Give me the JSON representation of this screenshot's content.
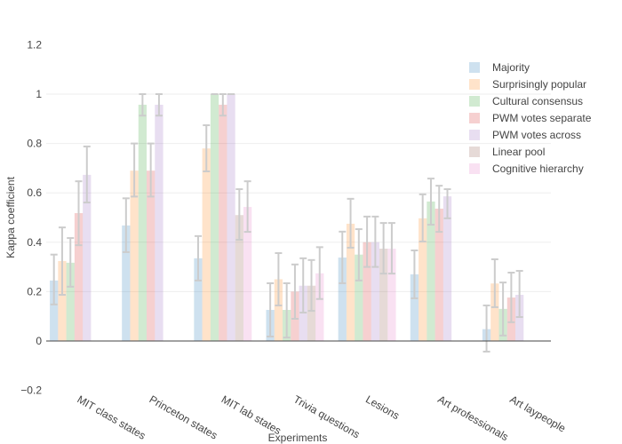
{
  "chart_data": {
    "type": "bar",
    "title": "",
    "xlabel": "Experiments",
    "ylabel": "Kappa coefficient",
    "ylim": [
      -0.2,
      1.2
    ],
    "yticks": [
      "1.2",
      "1",
      "0.8",
      "0.6",
      "0.4",
      "0.2",
      "0",
      "−0.2"
    ],
    "ytick_values": [
      1.2,
      1,
      0.8,
      0.6,
      0.4,
      0.2,
      0,
      -0.2
    ],
    "grid": true,
    "legend_position": "top-right",
    "categories": [
      "MIT class states",
      "Princeton states",
      "MIT lab states",
      "Trivia questions",
      "Lesions",
      "Art professionals",
      "Art laypeople"
    ],
    "series": [
      {
        "name": "Majority",
        "color": "#1f77b4",
        "values": [
          0.245,
          0.468,
          0.335,
          0.126,
          0.338,
          0.27,
          0.048
        ],
        "err_hi": [
          0.35,
          0.578,
          0.425,
          0.234,
          0.443,
          0.367,
          0.144
        ],
        "err_lo": [
          0.148,
          0.36,
          0.245,
          0.018,
          0.234,
          0.173,
          -0.043
        ]
      },
      {
        "name": "Surprisingly popular",
        "color": "#ff7f0e",
        "values": [
          0.324,
          0.69,
          0.78,
          0.25,
          0.475,
          0.497,
          0.233
        ],
        "err_hi": [
          0.46,
          0.8,
          0.874,
          0.356,
          0.576,
          0.594,
          0.331
        ],
        "err_lo": [
          0.187,
          0.585,
          0.687,
          0.144,
          0.378,
          0.403,
          0.137
        ]
      },
      {
        "name": "Cultural consensus",
        "color": "#2ca02c",
        "values": [
          0.317,
          0.957,
          1.0,
          0.126,
          0.35,
          0.565,
          0.13
        ],
        "err_hi": [
          0.417,
          1.0,
          1.0,
          0.234,
          0.453,
          0.658,
          0.237
        ],
        "err_lo": [
          0.22,
          0.913,
          1.0,
          0.014,
          0.245,
          0.471,
          0.022
        ]
      },
      {
        "name": "PWM votes separate",
        "color": "#d62728",
        "values": [
          0.518,
          0.69,
          0.957,
          0.2,
          0.4,
          0.536,
          0.176
        ],
        "err_hi": [
          0.647,
          0.8,
          1.0,
          0.31,
          0.504,
          0.629,
          0.277
        ],
        "err_lo": [
          0.388,
          0.585,
          0.913,
          0.09,
          0.3,
          0.442,
          0.076
        ]
      },
      {
        "name": "PWM votes across",
        "color": "#9467bd",
        "values": [
          0.673,
          0.957,
          1.0,
          0.224,
          0.4,
          0.586,
          0.187
        ],
        "err_hi": [
          0.788,
          1.0,
          1.0,
          0.335,
          0.504,
          0.615,
          0.284
        ],
        "err_lo": [
          0.561,
          0.913,
          1.0,
          0.115,
          0.3,
          0.497,
          0.097
        ]
      },
      {
        "name": "Linear pool",
        "color": "#8c564b",
        "values": [
          null,
          null,
          0.51,
          0.224,
          0.374,
          null,
          null
        ],
        "err_hi": [
          null,
          null,
          0.615,
          0.328,
          0.478,
          null,
          null
        ],
        "err_lo": [
          null,
          null,
          0.41,
          0.122,
          0.273,
          null,
          null
        ]
      },
      {
        "name": "Cognitive hierarchy",
        "color": "#e377c2",
        "values": [
          null,
          null,
          0.543,
          0.274,
          0.374,
          null,
          null
        ],
        "err_hi": [
          null,
          null,
          0.647,
          0.38,
          0.478,
          null,
          null
        ],
        "err_lo": [
          null,
          null,
          0.442,
          0.17,
          0.273,
          null,
          null
        ]
      }
    ]
  }
}
